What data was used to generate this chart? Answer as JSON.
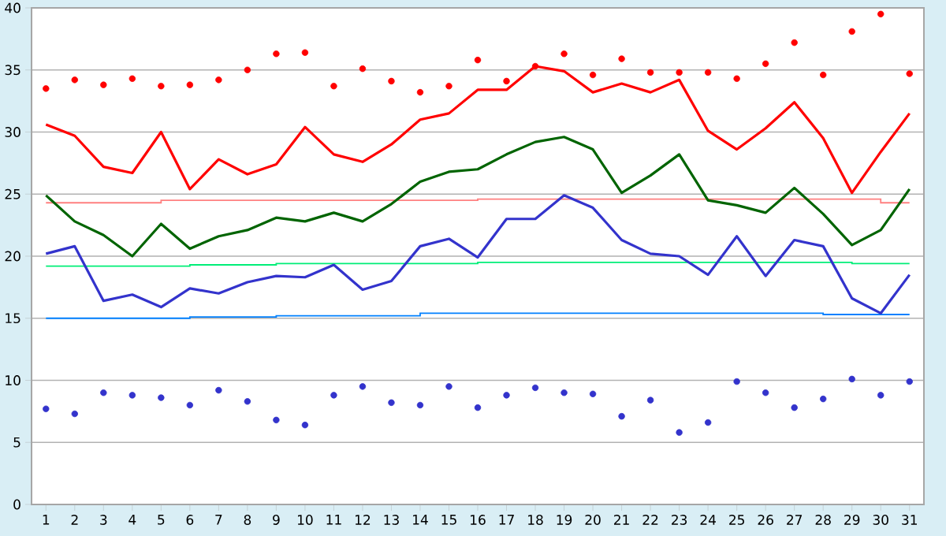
{
  "chart_data": {
    "type": "line",
    "categories": [
      "1",
      "2",
      "3",
      "4",
      "5",
      "6",
      "7",
      "8",
      "9",
      "10",
      "11",
      "12",
      "13",
      "14",
      "15",
      "16",
      "17",
      "18",
      "19",
      "20",
      "21",
      "22",
      "23",
      "24",
      "25",
      "26",
      "27",
      "28",
      "29",
      "30",
      "31"
    ],
    "ylim": [
      0,
      40
    ],
    "yticks": [
      0,
      5,
      10,
      15,
      20,
      25,
      30,
      35,
      40
    ],
    "grid": "y",
    "series": [
      {
        "type": "step",
        "color": "#ff8080",
        "values": [
          24.3,
          24.3,
          24.3,
          24.3,
          24.5,
          24.5,
          24.5,
          24.5,
          24.5,
          24.5,
          24.5,
          24.5,
          24.5,
          24.5,
          24.5,
          24.6,
          24.6,
          24.6,
          24.6,
          24.6,
          24.6,
          24.6,
          24.6,
          24.6,
          24.6,
          24.6,
          24.6,
          24.6,
          24.6,
          24.3,
          24.3
        ]
      },
      {
        "type": "step",
        "color": "#00ee77",
        "values": [
          19.2,
          19.2,
          19.2,
          19.2,
          19.2,
          19.3,
          19.3,
          19.3,
          19.4,
          19.4,
          19.4,
          19.4,
          19.4,
          19.4,
          19.4,
          19.5,
          19.5,
          19.5,
          19.5,
          19.5,
          19.5,
          19.5,
          19.5,
          19.5,
          19.5,
          19.5,
          19.5,
          19.5,
          19.4,
          19.4,
          19.4
        ]
      },
      {
        "type": "step",
        "color": "#0080ff",
        "values": [
          15.0,
          15.0,
          15.0,
          15.0,
          15.0,
          15.1,
          15.1,
          15.1,
          15.2,
          15.2,
          15.2,
          15.2,
          15.2,
          15.4,
          15.4,
          15.4,
          15.4,
          15.4,
          15.4,
          15.4,
          15.4,
          15.4,
          15.4,
          15.4,
          15.4,
          15.4,
          15.4,
          15.3,
          15.3,
          15.3,
          15.3
        ]
      },
      {
        "color": "#ff0000",
        "values": [
          30.6,
          29.7,
          27.2,
          26.7,
          30.0,
          25.4,
          27.8,
          26.6,
          27.4,
          30.4,
          28.2,
          27.6,
          29.0,
          31.0,
          31.5,
          33.4,
          33.4,
          35.3,
          34.9,
          33.2,
          33.9,
          33.2,
          34.2,
          30.1,
          28.6,
          30.3,
          32.4,
          29.5,
          25.1,
          28.4,
          31.5
        ]
      },
      {
        "color": "#006400",
        "values": [
          24.9,
          22.8,
          21.7,
          20.0,
          22.6,
          20.6,
          21.6,
          22.1,
          23.1,
          22.8,
          23.5,
          22.8,
          24.2,
          26.0,
          26.8,
          27.0,
          28.2,
          29.2,
          29.6,
          28.6,
          25.1,
          26.5,
          28.2,
          24.5,
          24.1,
          23.5,
          25.5,
          23.4,
          20.9,
          22.1,
          25.4
        ]
      },
      {
        "color": "#3333cc",
        "values": [
          20.2,
          20.8,
          16.4,
          16.9,
          15.9,
          17.4,
          17.0,
          17.9,
          18.4,
          18.3,
          19.3,
          17.3,
          18.0,
          20.8,
          21.4,
          19.9,
          23.0,
          23.0,
          24.9,
          23.9,
          21.3,
          20.2,
          20.0,
          18.5,
          21.6,
          18.4,
          21.3,
          20.8,
          16.6,
          15.4,
          18.5
        ]
      },
      {
        "type": "scatter",
        "marker": "circle",
        "color": "#ff0000",
        "values": [
          33.5,
          34.2,
          33.8,
          34.3,
          33.7,
          33.8,
          34.2,
          35.0,
          36.3,
          36.4,
          33.7,
          35.1,
          34.1,
          33.2,
          33.7,
          35.8,
          34.1,
          35.3,
          36.3,
          34.6,
          35.9,
          34.8,
          34.8,
          34.8,
          34.3,
          35.5,
          37.2,
          34.6,
          38.1,
          39.5,
          34.7
        ]
      },
      {
        "type": "scatter",
        "marker": "circle",
        "color": "#3333cc",
        "values": [
          7.7,
          7.3,
          9.0,
          8.8,
          8.6,
          8.0,
          9.2,
          8.3,
          6.8,
          6.4,
          8.8,
          9.5,
          8.2,
          8.0,
          9.5,
          7.8,
          8.8,
          9.4,
          9.0,
          8.9,
          7.1,
          8.4,
          5.8,
          6.6,
          9.9,
          9.0,
          7.8,
          8.5,
          10.1,
          8.8,
          9.9
        ]
      }
    ]
  }
}
